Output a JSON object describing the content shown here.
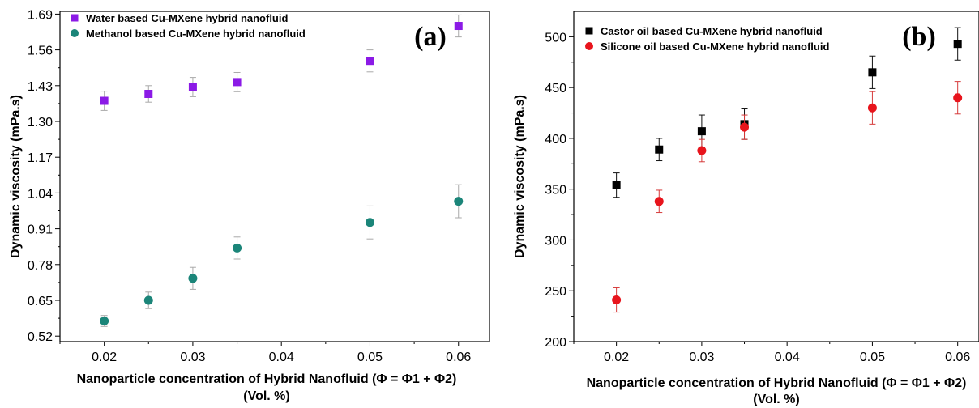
{
  "chart_data": [
    {
      "type": "scatter",
      "panel_label": "(a)",
      "xlabel_line1": "Nanoparticle concentration of Hybrid Nanofluid (Φ = Φ1 + Φ2)",
      "xlabel_line2": "(Vol. %)",
      "ylabel": "Dynamic viscosity (mPa.s)",
      "xlim": [
        0.015,
        0.0635
      ],
      "ylim": [
        0.5,
        1.7
      ],
      "xticks": [
        0.02,
        0.03,
        0.04,
        0.05,
        0.06
      ],
      "xtick_labels": [
        "0.02",
        "0.03",
        "0.04",
        "0.05",
        "0.06"
      ],
      "yticks": [
        0.52,
        0.65,
        0.78,
        0.91,
        1.04,
        1.17,
        1.3,
        1.43,
        1.56,
        1.69
      ],
      "ytick_labels": [
        "0.52",
        "0.65",
        "0.78",
        "0.91",
        "1.04",
        "1.17",
        "1.30",
        "1.43",
        "1.56",
        "1.69"
      ],
      "grid": false,
      "legend_position": "top-left",
      "series": [
        {
          "name": "Water based Cu-MXene hybrid nanofluid",
          "marker": "square",
          "color": "#8b1ae6",
          "errorbar_color": "#a9a9a9",
          "x": [
            0.02,
            0.025,
            0.03,
            0.035,
            0.05,
            0.06
          ],
          "y": [
            1.375,
            1.4,
            1.425,
            1.443,
            1.52,
            1.647
          ],
          "error": [
            0.035,
            0.03,
            0.035,
            0.035,
            0.04,
            0.04
          ]
        },
        {
          "name": "Methanol based Cu-MXene hybrid nanofluid",
          "marker": "circle",
          "color": "#1b8579",
          "errorbar_color": "#a9a9a9",
          "x": [
            0.02,
            0.025,
            0.03,
            0.035,
            0.05,
            0.06
          ],
          "y": [
            0.575,
            0.65,
            0.73,
            0.84,
            0.933,
            1.01
          ],
          "error": [
            0.02,
            0.03,
            0.04,
            0.04,
            0.06,
            0.06
          ]
        }
      ]
    },
    {
      "type": "scatter",
      "panel_label": "(b)",
      "xlabel_line1": "Nanoparticle concentration of Hybrid Nanofluid (Φ = Φ1 + Φ2)",
      "xlabel_line2": "(Vol. %)",
      "ylabel": "Dynamic viscosity (mPa.s)",
      "xlim": [
        0.015,
        0.0625
      ],
      "ylim": [
        200,
        525
      ],
      "xticks": [
        0.02,
        0.03,
        0.04,
        0.05,
        0.06
      ],
      "xtick_labels": [
        "0.02",
        "0.03",
        "0.04",
        "0.05",
        "0.06"
      ],
      "yticks": [
        200,
        250,
        300,
        350,
        400,
        450,
        500
      ],
      "ytick_labels": [
        "200",
        "250",
        "300",
        "350",
        "400",
        "450",
        "500"
      ],
      "grid": false,
      "legend_position": "top-left",
      "series": [
        {
          "name": "Castor oil based Cu-MXene hybrid nanofluid",
          "marker": "square",
          "color": "#000000",
          "errorbar_color": "#111111",
          "x": [
            0.02,
            0.025,
            0.03,
            0.035,
            0.05,
            0.06
          ],
          "y": [
            354,
            389,
            407,
            414,
            465,
            493
          ],
          "error": [
            12,
            11,
            16,
            15,
            16,
            16
          ]
        },
        {
          "name": "Silicone oil based Cu-MXene hybrid nanofluid",
          "marker": "circle",
          "color": "#e8141c",
          "errorbar_color": "#d63a3a",
          "x": [
            0.02,
            0.025,
            0.03,
            0.035,
            0.05,
            0.06
          ],
          "y": [
            241,
            338,
            388,
            411,
            430,
            440
          ],
          "error": [
            12,
            11,
            11,
            12,
            16,
            16
          ]
        }
      ]
    }
  ]
}
